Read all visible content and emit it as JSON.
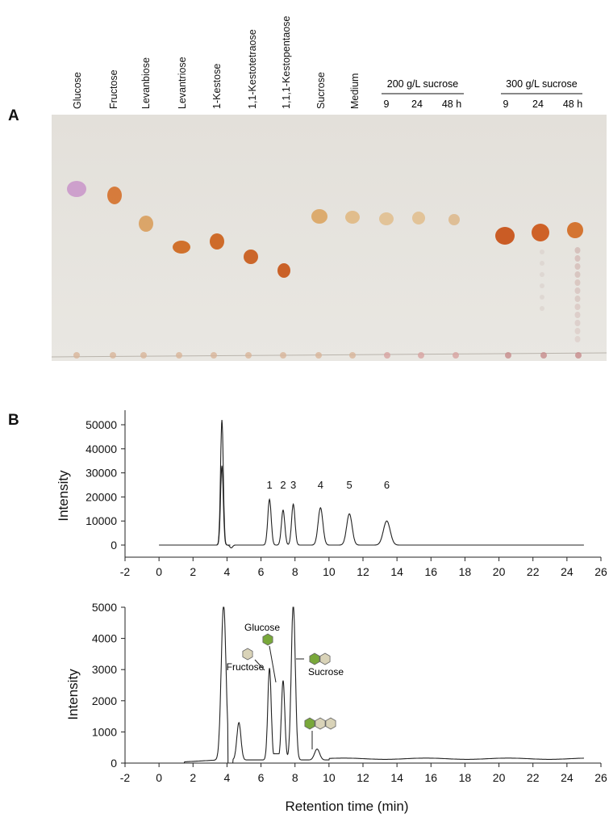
{
  "panel_a": {
    "letter": "A",
    "lanes": [
      "Glucose",
      "Fructose",
      "Levanbiose",
      "Levantriose",
      "1-Kestose",
      "1,1-Kestotetraose",
      "1,1,1-Kestopentaose",
      "Sucrose",
      "Medium"
    ],
    "groups": [
      {
        "label": "200 g/L sucrose",
        "times": [
          "9",
          "24",
          "48 h"
        ]
      },
      {
        "label": "300 g/L sucrose",
        "times": [
          "9",
          "24",
          "48 h"
        ]
      }
    ]
  },
  "panel_b_letter": "B",
  "chart_data": [
    {
      "type": "line",
      "title": "",
      "ylabel": "Intensity",
      "xlabel": "",
      "xlim": [
        -2,
        26
      ],
      "ylim": [
        -3000,
        55000
      ],
      "xticks": [
        "-2",
        "0",
        "2",
        "4",
        "6",
        "8",
        "10",
        "12",
        "14",
        "16",
        "18",
        "20",
        "22",
        "24",
        "26"
      ],
      "yticks": [
        "0",
        "10000",
        "20000",
        "30000",
        "40000",
        "50000"
      ],
      "peaks": [
        {
          "label": "",
          "rt": 3.7,
          "height": 52000
        },
        {
          "label": "1",
          "rt": 6.5,
          "height": 19000
        },
        {
          "label": "2",
          "rt": 7.3,
          "height": 14500
        },
        {
          "label": "3",
          "rt": 7.9,
          "height": 17000
        },
        {
          "label": "4",
          "rt": 9.5,
          "height": 15500
        },
        {
          "label": "5",
          "rt": 11.2,
          "height": 13000
        },
        {
          "label": "6",
          "rt": 13.4,
          "height": 10000
        }
      ]
    },
    {
      "type": "line",
      "title": "",
      "ylabel": "Intensity",
      "xlabel": "Retention time (min)",
      "xlim": [
        -2,
        26
      ],
      "ylim": [
        -200,
        5000
      ],
      "xticks": [
        "-2",
        "0",
        "2",
        "4",
        "6",
        "8",
        "10",
        "12",
        "14",
        "16",
        "18",
        "20",
        "22",
        "24",
        "26"
      ],
      "yticks": [
        "0",
        "1000",
        "2000",
        "3000",
        "4000",
        "5000"
      ],
      "peaks": [
        {
          "rt": 3.8,
          "height": 5000
        },
        {
          "rt": 4.7,
          "height": 1200
        },
        {
          "rt": 6.5,
          "height": 2950
        },
        {
          "rt": 7.3,
          "height": 2550
        },
        {
          "rt": 7.9,
          "height": 5000
        },
        {
          "rt": 9.3,
          "height": 350
        }
      ],
      "annotations": [
        {
          "text": "Glucose",
          "rt": 7.3
        },
        {
          "text": "Fructose",
          "rt": 6.5
        },
        {
          "text": "Sucrose",
          "rt": 7.9
        }
      ]
    }
  ],
  "colors": {
    "glucose_hex": "#79a83a",
    "fructose_hex": "#d9d3b8",
    "line": "#222222"
  }
}
